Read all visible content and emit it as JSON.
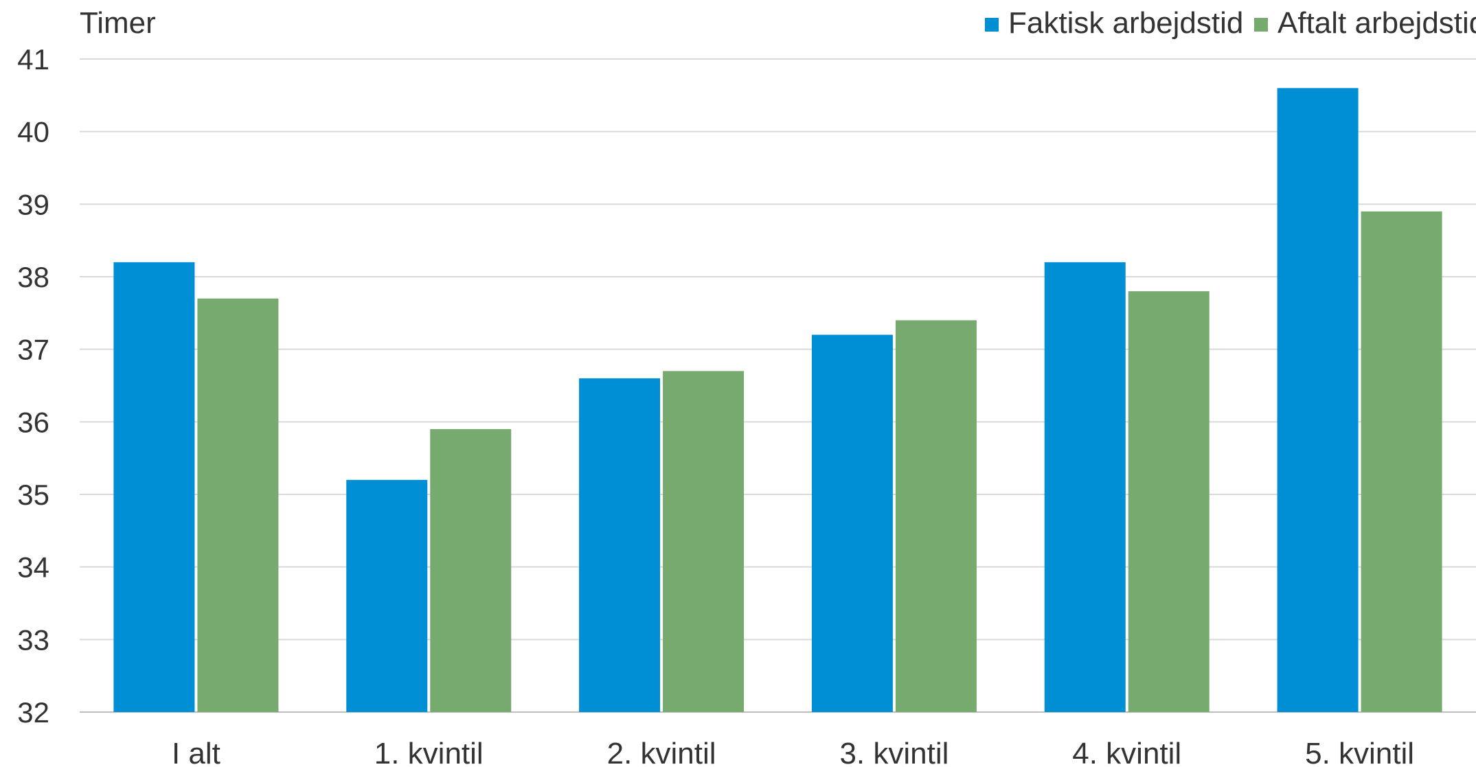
{
  "chart_data": {
    "type": "bar",
    "ylabel": "Timer",
    "ylim": [
      32,
      41
    ],
    "yticks": [
      32,
      33,
      34,
      35,
      36,
      37,
      38,
      39,
      40,
      41
    ],
    "grid": true,
    "legend_position": "top-right",
    "categories": [
      "I alt",
      "1. kvintil",
      "2. kvintil",
      "3. kvintil",
      "4. kvintil",
      "5. kvintil"
    ],
    "series": [
      {
        "name": "Faktisk arbejdstid",
        "color": "#008fd5",
        "values": [
          38.2,
          35.2,
          36.6,
          37.2,
          38.2,
          40.6
        ]
      },
      {
        "name": "Aftalt arbejdstid",
        "color": "#77aa6e",
        "values": [
          37.7,
          35.9,
          36.7,
          37.4,
          37.8,
          38.9
        ]
      }
    ]
  }
}
